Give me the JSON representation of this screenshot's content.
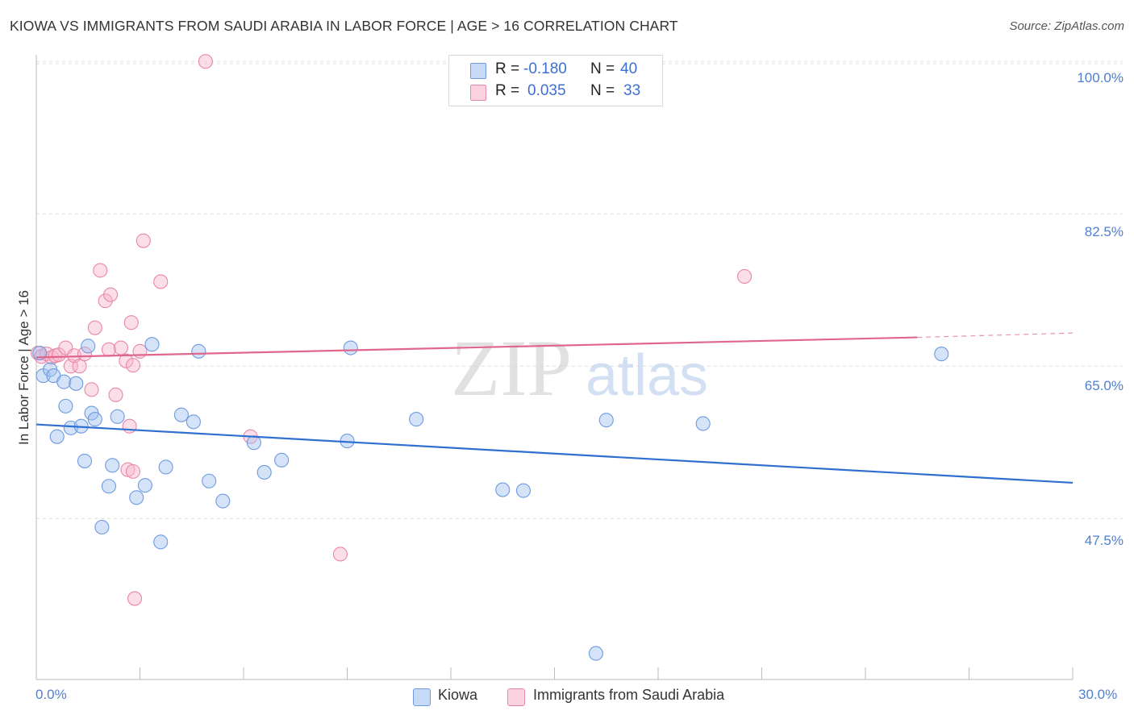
{
  "chart_data": {
    "type": "scatter",
    "title": "KIOWA VS IMMIGRANTS FROM SAUDI ARABIA IN LABOR FORCE | AGE > 16 CORRELATION CHART",
    "source": "Source: ZipAtlas.com",
    "ylabel": "In Labor Force | Age > 16",
    "xlim": [
      0,
      30
    ],
    "ylim": [
      29,
      101.5
    ],
    "x_tick_labels": [
      "0.0%",
      "30.0%"
    ],
    "y_ticks": [
      100,
      82.5,
      65,
      47.5
    ],
    "y_tick_labels": [
      "100.0%",
      "82.5%",
      "65.0%",
      "47.5%"
    ],
    "watermark": {
      "part1": "ZIP",
      "part2": "atlas"
    },
    "colors": {
      "kiowa": "#6e9be0",
      "saudi": "#e987a8",
      "kiowa_line": "#2f6fcf",
      "saudi_line": "#e0668e",
      "axis_text": "#4f7fcf"
    },
    "legend": {
      "r_label": "R =",
      "n_label": "N =",
      "rows": [
        {
          "series": "Kiowa",
          "r": "-0.180",
          "n": "40"
        },
        {
          "series": "Immigrants from Saudi Arabia",
          "r": "0.035",
          "n": "33"
        }
      ]
    },
    "series": [
      {
        "name": "Kiowa",
        "trend": {
          "x": [
            0,
            30
          ],
          "y": [
            58.3,
            51.6
          ],
          "dashed_from": null
        },
        "points": [
          [
            0.1,
            66.5
          ],
          [
            0.2,
            63.9
          ],
          [
            0.4,
            64.6
          ],
          [
            0.5,
            63.9
          ],
          [
            0.6,
            56.9
          ],
          [
            0.8,
            63.2
          ],
          [
            0.85,
            60.4
          ],
          [
            1.0,
            57.9
          ],
          [
            1.15,
            63.0
          ],
          [
            1.3,
            58.1
          ],
          [
            1.4,
            54.1
          ],
          [
            1.5,
            67.3
          ],
          [
            1.6,
            59.6
          ],
          [
            1.7,
            58.9
          ],
          [
            1.9,
            46.5
          ],
          [
            2.1,
            51.2
          ],
          [
            2.2,
            53.6
          ],
          [
            2.35,
            59.2
          ],
          [
            2.9,
            49.9
          ],
          [
            3.15,
            51.3
          ],
          [
            3.35,
            67.5
          ],
          [
            3.6,
            44.8
          ],
          [
            3.75,
            53.4
          ],
          [
            4.2,
            59.4
          ],
          [
            4.55,
            58.6
          ],
          [
            4.7,
            66.7
          ],
          [
            5.0,
            51.8
          ],
          [
            5.4,
            49.5
          ],
          [
            6.3,
            56.2
          ],
          [
            6.6,
            52.8
          ],
          [
            7.1,
            54.2
          ],
          [
            9.0,
            56.4
          ],
          [
            9.1,
            67.1
          ],
          [
            11.0,
            58.9
          ],
          [
            13.5,
            50.8
          ],
          [
            14.1,
            50.7
          ],
          [
            16.2,
            32.0
          ],
          [
            16.5,
            58.8
          ],
          [
            19.3,
            58.4
          ],
          [
            26.2,
            66.4
          ]
        ]
      },
      {
        "name": "Immigrants from Saudi Arabia",
        "trend": {
          "x": [
            0,
            25.5
          ],
          "y": [
            66.0,
            68.3
          ],
          "dashed_from": 25.5,
          "dashed_to": 30,
          "dashed_end_y": 68.8
        },
        "points": [
          [
            0.05,
            66.5
          ],
          [
            0.15,
            66.1
          ],
          [
            0.3,
            66.4
          ],
          [
            0.45,
            66.0
          ],
          [
            0.55,
            66.2
          ],
          [
            0.65,
            66.3
          ],
          [
            0.85,
            67.1
          ],
          [
            1.0,
            65.0
          ],
          [
            1.1,
            66.2
          ],
          [
            1.25,
            65.0
          ],
          [
            1.4,
            66.4
          ],
          [
            1.6,
            62.3
          ],
          [
            1.7,
            69.4
          ],
          [
            1.85,
            76.0
          ],
          [
            2.0,
            72.5
          ],
          [
            2.1,
            66.9
          ],
          [
            2.15,
            73.2
          ],
          [
            2.3,
            61.7
          ],
          [
            2.45,
            67.1
          ],
          [
            2.6,
            65.6
          ],
          [
            2.7,
            58.1
          ],
          [
            2.65,
            53.1
          ],
          [
            2.75,
            70.0
          ],
          [
            2.8,
            52.9
          ],
          [
            2.8,
            65.1
          ],
          [
            2.85,
            38.3
          ],
          [
            3.0,
            66.7
          ],
          [
            3.1,
            79.4
          ],
          [
            3.6,
            74.7
          ],
          [
            4.9,
            100.0
          ],
          [
            6.2,
            56.9
          ],
          [
            8.8,
            43.4
          ],
          [
            20.5,
            75.3
          ]
        ]
      }
    ]
  }
}
